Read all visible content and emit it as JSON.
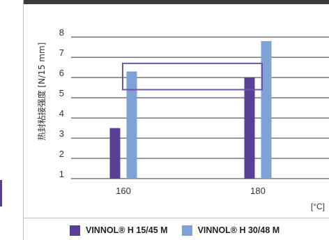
{
  "colors": {
    "series1": "#5b3f96",
    "series2": "#7ea1d6",
    "highlight": "#6e55a4",
    "grid": "#333333"
  },
  "chart_data": {
    "type": "bar",
    "ylabel": "热封粘接强度 [N/15 mm]",
    "xunit": "[°C]",
    "categories": [
      "160",
      "180"
    ],
    "ylim": [
      1,
      8.8
    ],
    "yticks": [
      1,
      2,
      3,
      4,
      5,
      6,
      7,
      8
    ],
    "grid": true,
    "legend": "bottom",
    "series": [
      {
        "name": "VINNOL® H 15/45 M",
        "values": [
          3.5,
          6.0
        ]
      },
      {
        "name": "VINNOL® H 30/48 M",
        "values": [
          6.3,
          7.8
        ]
      }
    ],
    "highlight_range": [
      5.4,
      6.7
    ]
  }
}
